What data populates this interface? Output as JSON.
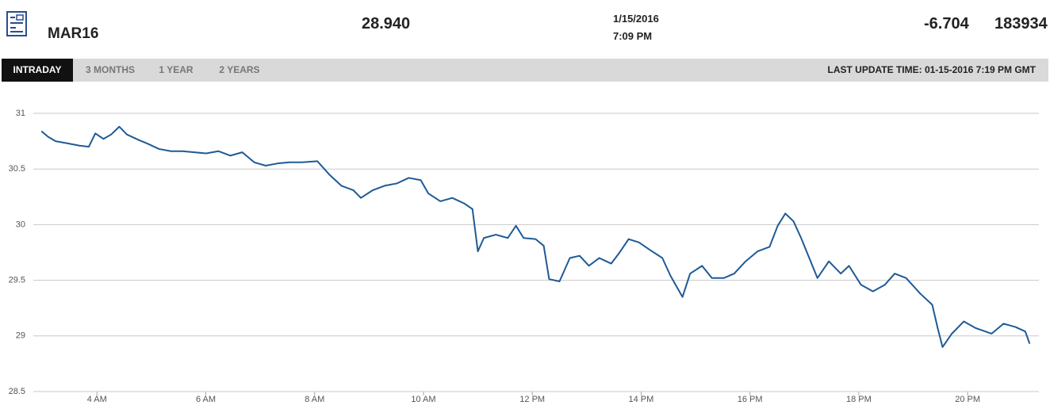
{
  "header": {
    "symbol": "MAR16",
    "price": "28.940",
    "date": "1/15/2016",
    "time": "7:09 PM",
    "change": "-6.704",
    "volume": "183934"
  },
  "tabs": [
    "INTRADAY",
    "3 MONTHS",
    "1 YEAR",
    "2 YEARS"
  ],
  "last_update": "LAST UPDATE TIME: 01-15-2016 7:19 PM GMT",
  "chart_data": {
    "type": "line",
    "x": [
      2.98,
      3.1,
      3.24,
      3.46,
      3.68,
      3.85,
      3.97,
      4.12,
      4.26,
      4.41,
      4.55,
      4.77,
      4.92,
      5.14,
      5.36,
      5.57,
      5.79,
      6.01,
      6.23,
      6.45,
      6.67,
      6.89,
      7.1,
      7.32,
      7.54,
      7.76,
      8.05,
      8.27,
      8.49,
      8.71,
      8.85,
      9.07,
      9.29,
      9.51,
      9.73,
      9.95,
      10.09,
      10.31,
      10.53,
      10.75,
      10.9,
      11.0,
      11.11,
      11.33,
      11.55,
      11.7,
      11.84,
      12.06,
      12.21,
      12.31,
      12.5,
      12.69,
      12.87,
      13.04,
      13.23,
      13.45,
      13.59,
      13.77,
      13.96,
      14.17,
      14.39,
      14.54,
      14.76,
      14.9,
      15.12,
      15.3,
      15.52,
      15.71,
      15.92,
      16.14,
      16.36,
      16.51,
      16.65,
      16.8,
      16.94,
      17.09,
      17.24,
      17.45,
      17.67,
      17.82,
      18.04,
      18.26,
      18.48,
      18.66,
      18.87,
      19.13,
      19.35,
      19.45,
      19.54,
      19.71,
      19.93,
      20.15,
      20.44,
      20.66,
      20.88,
      21.06,
      21.14
    ],
    "series": [
      {
        "color": "#1f5a96",
        "values": [
          30.84,
          30.79,
          30.75,
          30.73,
          30.71,
          30.7,
          30.82,
          30.77,
          30.81,
          30.88,
          30.81,
          30.76,
          30.73,
          30.68,
          30.66,
          30.66,
          30.65,
          30.64,
          30.66,
          30.62,
          30.65,
          30.56,
          30.53,
          30.55,
          30.56,
          30.56,
          30.57,
          30.45,
          30.35,
          30.31,
          30.24,
          30.31,
          30.35,
          30.37,
          30.42,
          30.4,
          30.28,
          30.21,
          30.24,
          30.19,
          30.14,
          29.76,
          29.88,
          29.91,
          29.88,
          29.99,
          29.88,
          29.87,
          29.81,
          29.51,
          29.49,
          29.7,
          29.72,
          29.63,
          29.7,
          29.65,
          29.74,
          29.87,
          29.84,
          29.77,
          29.7,
          29.54,
          29.35,
          29.56,
          29.63,
          29.52,
          29.52,
          29.56,
          29.67,
          29.76,
          29.8,
          29.99,
          30.1,
          30.03,
          29.88,
          29.7,
          29.52,
          29.67,
          29.56,
          29.63,
          29.46,
          29.4,
          29.46,
          29.56,
          29.52,
          29.38,
          29.28,
          29.07,
          28.9,
          29.02,
          29.13,
          29.07,
          29.02,
          29.11,
          29.08,
          29.04,
          28.93
        ]
      }
    ],
    "xlim": [
      2.83,
      21.31
    ],
    "xticks": [
      {
        "value": 4,
        "label": "4 AM"
      },
      {
        "value": 6,
        "label": "6 AM"
      },
      {
        "value": 8,
        "label": "8 AM"
      },
      {
        "value": 10,
        "label": "10 AM"
      },
      {
        "value": 12,
        "label": "12 PM"
      },
      {
        "value": 14,
        "label": "14 PM"
      },
      {
        "value": 16,
        "label": "16 PM"
      },
      {
        "value": 18,
        "label": "18 PM"
      },
      {
        "value": 20,
        "label": "20 PM"
      }
    ],
    "ylim": [
      28.5,
      31
    ],
    "yticks": [
      28.5,
      29,
      29.5,
      30,
      30.5,
      31
    ],
    "grid": true
  }
}
